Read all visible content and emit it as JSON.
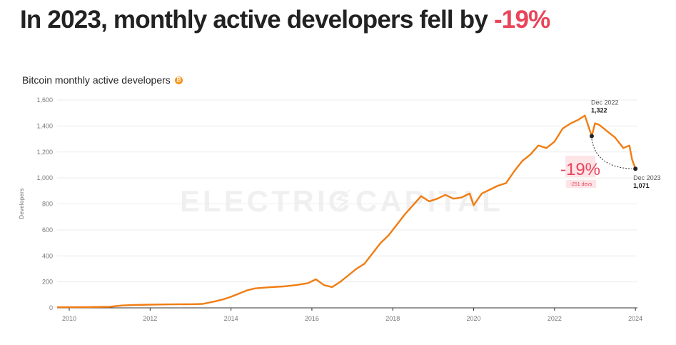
{
  "headline": {
    "text": "In 2023, monthly active developers fell by ",
    "highlight": "-19%"
  },
  "chart_title": "Bitcoin monthly active developers",
  "icon": "bitcoin-icon",
  "watermark": {
    "left": "ELECTRIC",
    "bolt": "⚡",
    "right": "CAPITAL"
  },
  "colors": {
    "line": "#f07d13",
    "accent": "#e8455a",
    "bitcoin": "#f7931a"
  },
  "chart_data": {
    "type": "line",
    "title": "Bitcoin monthly active developers",
    "xlabel": "",
    "ylabel": "Developers",
    "xlim": [
      2009.7,
      2024.05
    ],
    "ylim": [
      0,
      1600
    ],
    "x_ticks": [
      "2010",
      "2012",
      "2014",
      "2016",
      "2018",
      "2020",
      "2022",
      "2024"
    ],
    "y_ticks": [
      "0",
      "200",
      "400",
      "600",
      "800",
      "1,000",
      "1,200",
      "1,400",
      "1,600"
    ],
    "grid": true,
    "series": [
      {
        "values_x": [
          2009.7,
          2010.0,
          2010.5,
          2011.0,
          2011.3,
          2011.6,
          2012.0,
          2012.5,
          2013.0,
          2013.3,
          2013.6,
          2013.8,
          2014.0,
          2014.2,
          2014.4,
          2014.6,
          2014.8,
          2015.0,
          2015.3,
          2015.6,
          2015.9,
          2016.1,
          2016.3,
          2016.5,
          2016.7,
          2016.9,
          2017.1,
          2017.3,
          2017.5,
          2017.7,
          2017.9,
          2018.1,
          2018.3,
          2018.5,
          2018.7,
          2018.9,
          2019.1,
          2019.3,
          2019.5,
          2019.7,
          2019.9,
          2020.0,
          2020.2,
          2020.4,
          2020.6,
          2020.8,
          2021.0,
          2021.2,
          2021.4,
          2021.6,
          2021.8,
          2022.0,
          2022.2,
          2022.4,
          2022.6,
          2022.75,
          2022.92,
          2023.0,
          2023.1,
          2023.3,
          2023.5,
          2023.7,
          2023.85,
          2023.92,
          2024.0
        ],
        "values_y": [
          5,
          5,
          6,
          8,
          18,
          22,
          25,
          27,
          28,
          30,
          50,
          65,
          85,
          110,
          135,
          150,
          155,
          160,
          165,
          175,
          190,
          220,
          175,
          160,
          200,
          250,
          300,
          340,
          420,
          500,
          560,
          640,
          720,
          790,
          860,
          820,
          840,
          870,
          840,
          850,
          880,
          790,
          880,
          910,
          940,
          960,
          1050,
          1130,
          1180,
          1250,
          1230,
          1280,
          1380,
          1420,
          1450,
          1480,
          1322,
          1420,
          1410,
          1360,
          1310,
          1230,
          1250,
          1140,
          1071
        ]
      }
    ],
    "annotations": [
      {
        "date": "Dec 2022",
        "value": "1,322",
        "x": 2022.92,
        "y": 1322
      },
      {
        "date": "Dec 2023",
        "value": "1,071",
        "x": 2024.0,
        "y": 1071
      }
    ],
    "change": {
      "pct": "-19%",
      "devs": "-251 devs"
    }
  }
}
